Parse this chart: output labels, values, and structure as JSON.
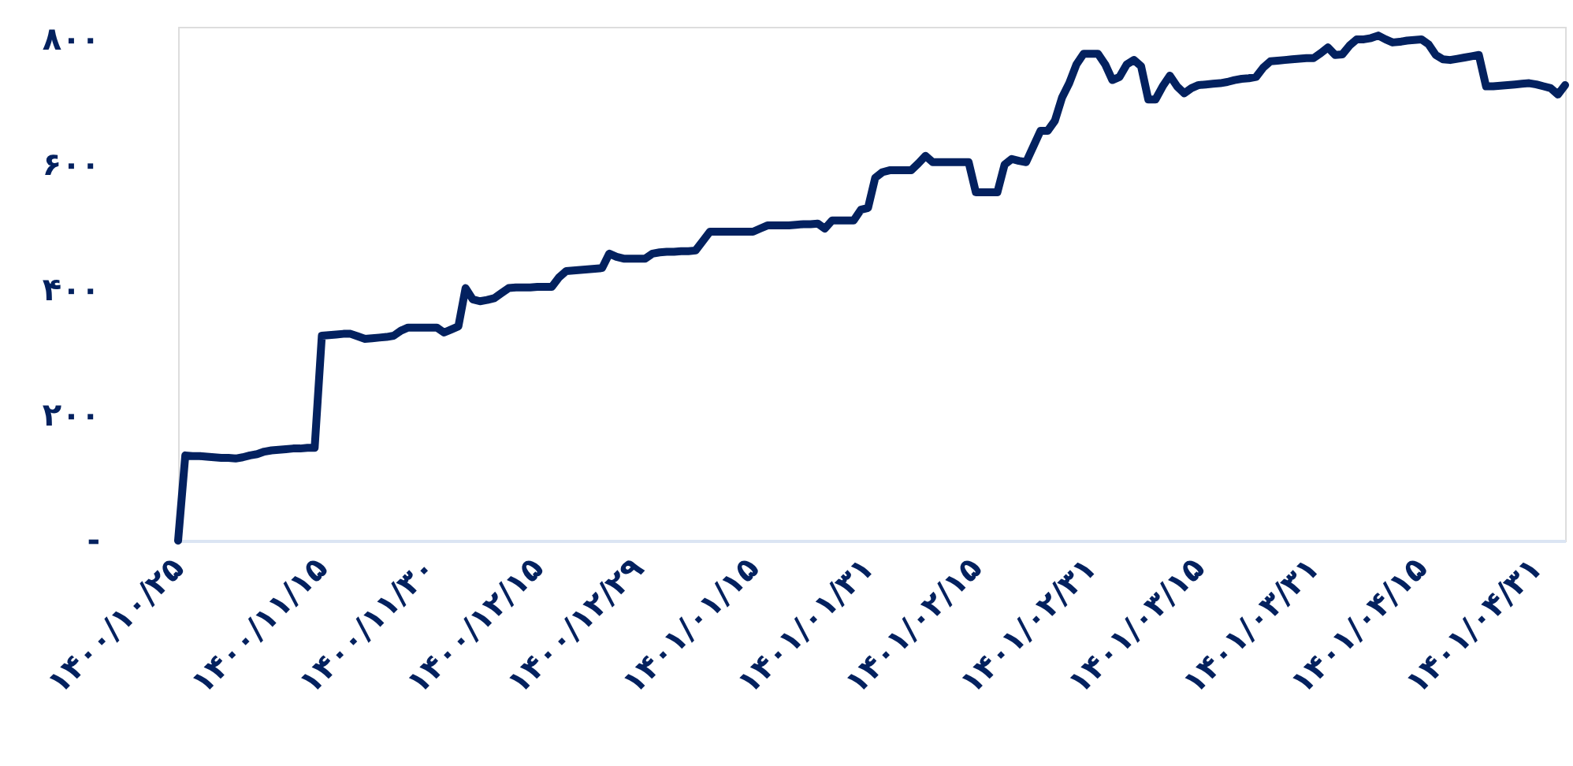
{
  "chart_data": {
    "type": "line",
    "categories": [
      "۱۴۰۰/۱۰/۲۵",
      null,
      null,
      null,
      null,
      null,
      null,
      null,
      null,
      null,
      null,
      null,
      null,
      null,
      null,
      null,
      null,
      null,
      null,
      null,
      "۱۴۰۰/۱۱/۱۵",
      null,
      null,
      null,
      null,
      null,
      null,
      null,
      null,
      null,
      null,
      null,
      null,
      null,
      null,
      "۱۴۰۰/۱۱/۳۰",
      null,
      null,
      null,
      null,
      null,
      null,
      null,
      null,
      null,
      null,
      null,
      null,
      null,
      null,
      "۱۴۰۰/۱۲/۱۵",
      null,
      null,
      null,
      null,
      null,
      null,
      null,
      null,
      null,
      null,
      null,
      null,
      null,
      "۱۴۰۰/۱۲/۲۹",
      null,
      null,
      null,
      null,
      null,
      null,
      null,
      null,
      null,
      null,
      null,
      null,
      null,
      null,
      null,
      "۱۴۰۱/۰۱/۱۵",
      null,
      null,
      null,
      null,
      null,
      null,
      null,
      null,
      null,
      null,
      null,
      null,
      null,
      null,
      null,
      "۱۴۰۱/۰۱/۳۱",
      null,
      null,
      null,
      null,
      null,
      null,
      null,
      null,
      null,
      null,
      null,
      null,
      null,
      null,
      "۱۴۰۱/۰۲/۱۵",
      null,
      null,
      null,
      null,
      null,
      null,
      null,
      null,
      null,
      null,
      null,
      null,
      null,
      null,
      null,
      "۱۴۰۱/۰۲/۳۱",
      null,
      null,
      null,
      null,
      null,
      null,
      null,
      null,
      null,
      null,
      null,
      null,
      null,
      null,
      "۱۴۰۱/۰۳/۱۵",
      null,
      null,
      null,
      null,
      null,
      null,
      null,
      null,
      null,
      null,
      null,
      null,
      null,
      null,
      null,
      "۱۴۰۱/۰۳/۳۱",
      null,
      null,
      null,
      null,
      null,
      null,
      null,
      null,
      null,
      null,
      null,
      null,
      null,
      null,
      "۱۴۰۱/۰۴/۱۵",
      null,
      null,
      null,
      null,
      null,
      null,
      null,
      null,
      null,
      null,
      null,
      null,
      null,
      null,
      null,
      "۱۴۰۱/۰۴/۳۱",
      null,
      null,
      null,
      null
    ],
    "series": [
      {
        "color": "#03215f",
        "values": [
          0,
          136,
          135,
          135,
          134,
          133,
          132,
          132,
          131,
          133,
          136,
          138,
          142,
          144,
          145,
          146,
          147,
          147,
          148,
          148,
          327,
          328,
          329,
          330,
          330,
          326,
          322,
          323,
          324,
          325,
          327,
          335,
          340,
          340,
          340,
          340,
          340,
          332,
          337,
          342,
          403,
          385,
          382,
          384,
          387,
          395,
          403,
          404,
          404,
          404,
          405,
          405,
          405,
          420,
          430,
          431,
          432,
          433,
          434,
          435,
          458,
          453,
          450,
          450,
          450,
          450,
          458,
          460,
          461,
          461,
          462,
          462,
          463,
          478,
          493,
          493,
          493,
          493,
          493,
          493,
          493,
          498,
          503,
          503,
          503,
          503,
          504,
          505,
          505,
          506,
          498,
          511,
          511,
          511,
          511,
          528,
          531,
          579,
          588,
          591,
          591,
          591,
          591,
          602,
          614,
          604,
          604,
          604,
          604,
          604,
          604,
          556,
          556,
          556,
          556,
          600,
          609,
          606,
          604,
          629,
          654,
          654,
          670,
          707,
          730,
          760,
          777,
          777,
          777,
          760,
          735,
          740,
          760,
          767,
          757,
          704,
          704,
          725,
          742,
          725,
          714,
          722,
          727,
          728,
          729,
          730,
          732,
          735,
          737,
          738,
          740,
          755,
          765,
          766,
          767,
          768,
          769,
          770,
          770,
          778,
          787,
          775,
          776,
          790,
          800,
          800,
          802,
          806,
          800,
          795,
          796,
          798,
          799,
          800,
          792,
          775,
          768,
          767,
          769,
          771,
          773,
          775,
          725,
          725,
          726,
          727,
          728,
          729,
          730,
          728,
          725,
          722,
          712,
          727
        ]
      }
    ],
    "ylim": [
      0,
      820
    ],
    "yticks": [
      {
        "value": 0,
        "label": "-"
      },
      {
        "value": 200,
        "label": "۲۰۰"
      },
      {
        "value": 400,
        "label": "۴۰۰"
      },
      {
        "value": 600,
        "label": "۶۰۰"
      },
      {
        "value": 800,
        "label": "۸۰۰"
      }
    ],
    "grid": false,
    "marker": "none",
    "line_style": "solid"
  }
}
